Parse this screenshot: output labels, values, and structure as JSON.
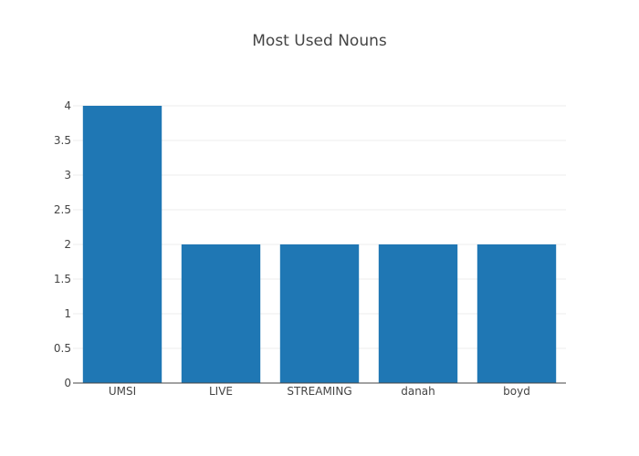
{
  "chart_data": {
    "type": "bar",
    "title": "Most Used Nouns",
    "categories": [
      "UMSI",
      "LIVE",
      "STREAMING",
      "danah",
      "boyd"
    ],
    "values": [
      4,
      2,
      2,
      2,
      2
    ],
    "y_ticks": [
      "0",
      "0.5",
      "1",
      "1.5",
      "2",
      "2.5",
      "3",
      "3.5",
      "4"
    ],
    "ylim": [
      0,
      4
    ],
    "grid": true,
    "bar_color": "#1f77b4",
    "xlabel": "",
    "ylabel": ""
  }
}
